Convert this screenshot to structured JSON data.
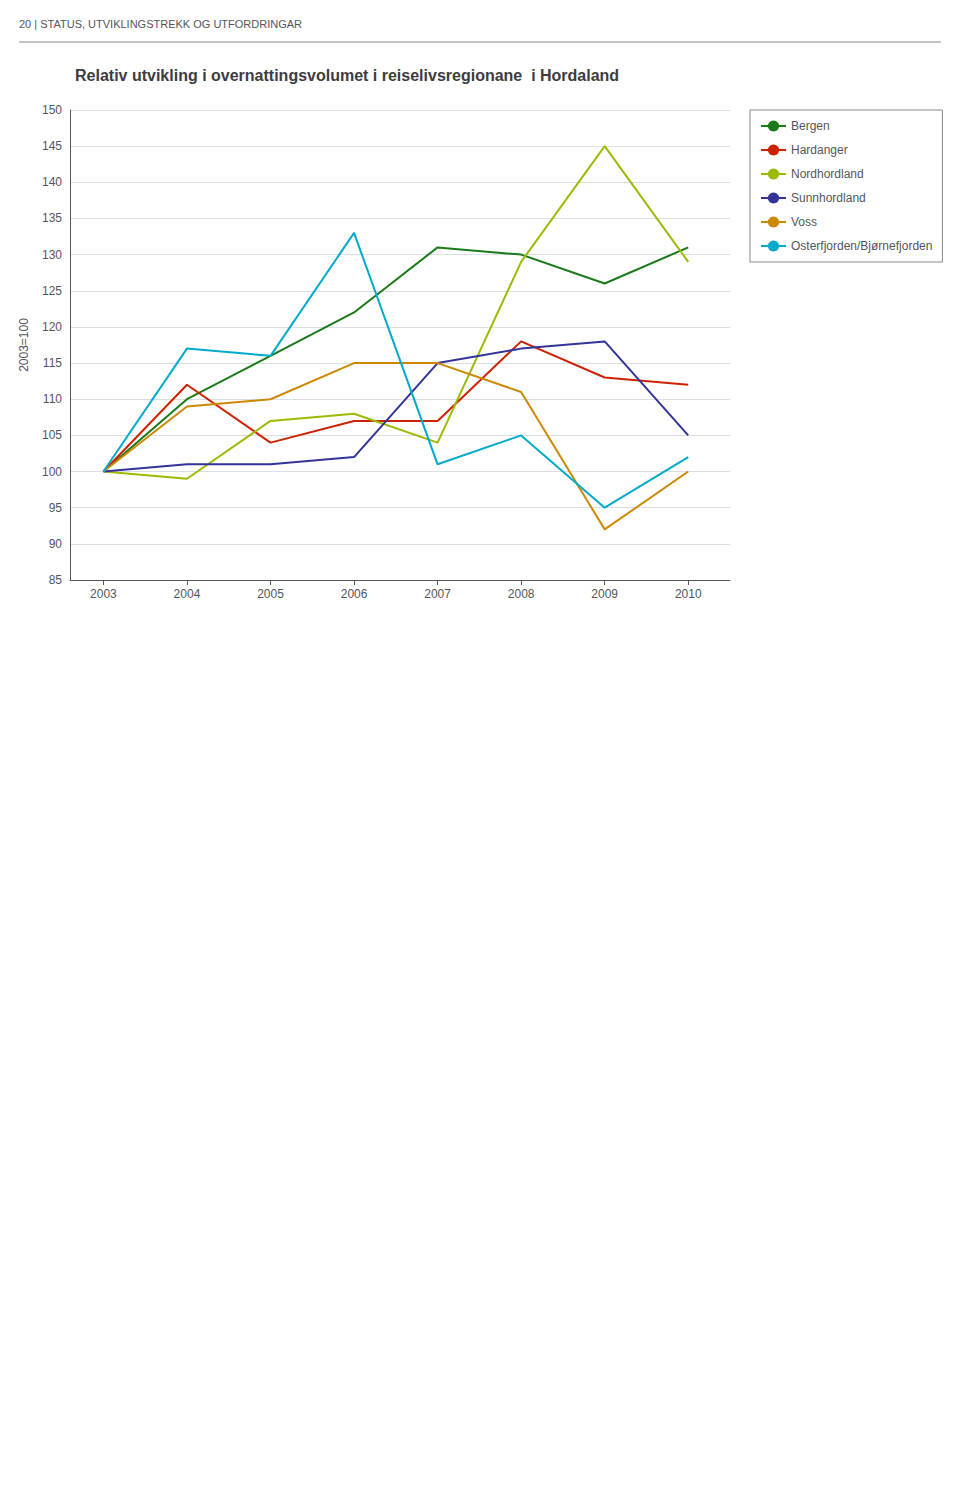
{
  "chart_data": {
    "type": "line",
    "title": "Relativ utvikling i overnattingsvolumet i reiselivsregionane  i Hordaland",
    "annotations": [
      "20 | STATUS, UTVIKLINGSTREKK OG UTFORDRINGAR"
    ],
    "ylabel": "2003=100",
    "x": [
      2003,
      2004,
      2005,
      2006,
      2007,
      2008,
      2009,
      2010
    ],
    "xlim": [
      2002.6,
      2010.5
    ],
    "xticks": [
      2003,
      2004,
      2005,
      2006,
      2007,
      2008,
      2009,
      2010
    ],
    "ylim": [
      85,
      150
    ],
    "yticks": [
      85,
      90,
      95,
      100,
      105,
      110,
      115,
      120,
      125,
      130,
      135,
      140,
      145,
      150
    ],
    "grid": true,
    "legend": "right",
    "marker": "none",
    "series": [
      {
        "name": "Bergen",
        "color": "#1a7a1a",
        "values": [
          100,
          110,
          116,
          122,
          131,
          130,
          126,
          131
        ]
      },
      {
        "name": "Hardanger",
        "color": "#cc2200",
        "values": [
          100,
          112,
          104,
          107,
          107,
          118,
          113,
          112
        ]
      },
      {
        "name": "Nordhordland",
        "color": "#99bb00",
        "values": [
          100,
          99,
          107,
          108,
          104,
          129,
          145,
          129
        ]
      },
      {
        "name": "Sunnhordland",
        "color": "#333399",
        "values": [
          100,
          101,
          101,
          102,
          115,
          117,
          118,
          105
        ]
      },
      {
        "name": "Voss",
        "color": "#cc8800",
        "values": [
          100,
          109,
          110,
          115,
          115,
          111,
          92,
          100
        ]
      },
      {
        "name": "Osterfjorden/Bjørnefjorden",
        "color": "#00aacc",
        "values": [
          100,
          117,
          116,
          133,
          101,
          105,
          95,
          102
        ]
      }
    ]
  }
}
